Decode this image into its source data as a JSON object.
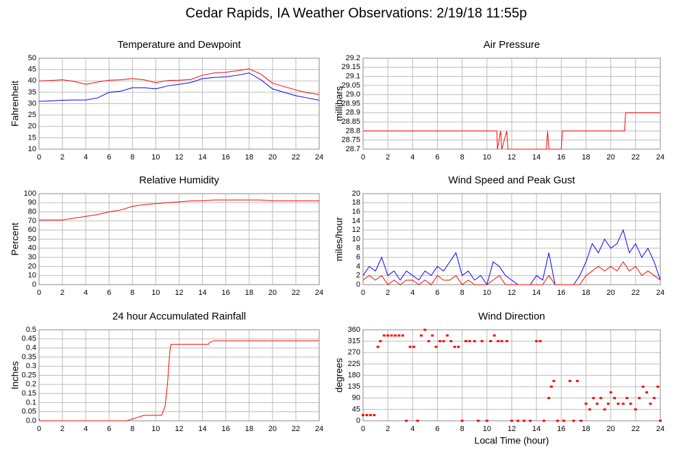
{
  "title": "Cedar Rapids, IA Weather Observations: 2/19/18 11:55p",
  "chart_data": [
    {
      "type": "line",
      "title": "Temperature and Dewpoint",
      "y_label": "Fahrenheit",
      "xlim": [
        0,
        24
      ],
      "xticks": [
        0,
        2,
        4,
        6,
        8,
        10,
        12,
        14,
        16,
        18,
        20,
        22,
        24
      ],
      "ylim": [
        10,
        50
      ],
      "yticks": [
        10,
        15,
        20,
        25,
        30,
        35,
        40,
        45,
        50
      ],
      "grid": true,
      "x": [
        0,
        1,
        2,
        3,
        4,
        5,
        6,
        7,
        8,
        9,
        10,
        11,
        12,
        13,
        14,
        15,
        16,
        17,
        18,
        19,
        20,
        21,
        22,
        23,
        24
      ],
      "series": [
        {
          "color": "#ff0000",
          "values": [
            40,
            40.2,
            40.5,
            39.8,
            38.5,
            39.5,
            40.3,
            40.5,
            41,
            40.5,
            39.2,
            40.2,
            40.3,
            40.6,
            42.5,
            43.5,
            43.8,
            44.5,
            45.3,
            43,
            39,
            37.5,
            36,
            34.8,
            34
          ]
        },
        {
          "color": "#0000ff",
          "values": [
            31,
            31.2,
            31.5,
            31.6,
            31.6,
            32.5,
            35,
            35.5,
            37,
            37,
            36.5,
            37.8,
            38.5,
            39.3,
            41,
            41.5,
            41.8,
            42.5,
            43.5,
            40.5,
            36.5,
            35,
            33.5,
            32.5,
            31.5
          ]
        }
      ]
    },
    {
      "type": "line",
      "title": "Air Pressure",
      "y_label": "millibars",
      "xlim": [
        0,
        24
      ],
      "xticks": [
        0,
        2,
        4,
        6,
        8,
        10,
        12,
        14,
        16,
        18,
        20,
        22,
        24
      ],
      "ylim": [
        28.7,
        29.2
      ],
      "yticks": [
        28.7,
        28.75,
        28.8,
        28.85,
        28.9,
        28.95,
        {
          "value": 29,
          "label": "29.0"
        },
        29.05,
        29.1,
        29.15,
        29.2
      ],
      "grid": true,
      "x": [
        0,
        10.8,
        10.85,
        11.1,
        11.2,
        11.6,
        11.7,
        14.8,
        14.9,
        15.0,
        15.1,
        16.0,
        16.1,
        21.1,
        21.2,
        24
      ],
      "series": [
        {
          "color": "#ff0000",
          "values": [
            28.8,
            28.8,
            28.7,
            28.8,
            28.7,
            28.8,
            28.7,
            28.7,
            28.8,
            28.7,
            28.7,
            28.7,
            28.8,
            28.8,
            28.9,
            28.9
          ]
        }
      ]
    },
    {
      "type": "line",
      "title": "Relative Humidity",
      "y_label": "Percent",
      "xlim": [
        0,
        24
      ],
      "xticks": [
        0,
        2,
        4,
        6,
        8,
        10,
        12,
        14,
        16,
        18,
        20,
        22,
        24
      ],
      "ylim": [
        0,
        100
      ],
      "yticks": [
        0,
        10,
        20,
        30,
        40,
        50,
        60,
        70,
        80,
        90,
        100
      ],
      "grid": true,
      "x": [
        0,
        1,
        2,
        3,
        4,
        5,
        6,
        7,
        8,
        9,
        10,
        11,
        12,
        13,
        14,
        15,
        16,
        17,
        18,
        19,
        20,
        21,
        22,
        23,
        24
      ],
      "series": [
        {
          "color": "#ff0000",
          "values": [
            71,
            71,
            71,
            73,
            75,
            77,
            80,
            82,
            86,
            88,
            89,
            90,
            91,
            92,
            92,
            93,
            93,
            93,
            93,
            93,
            92,
            92,
            92,
            92,
            92
          ]
        }
      ]
    },
    {
      "type": "line",
      "title": "Wind Speed and Peak Gust",
      "y_label": "miles/hour",
      "xlim": [
        0,
        24
      ],
      "xticks": [
        0,
        2,
        4,
        6,
        8,
        10,
        12,
        14,
        16,
        18,
        20,
        22,
        24
      ],
      "ylim": [
        0,
        20
      ],
      "yticks": [
        0,
        2,
        4,
        6,
        8,
        10,
        12,
        14,
        16,
        18,
        20
      ],
      "grid": true,
      "x": [
        0,
        0.5,
        1,
        1.5,
        2,
        2.5,
        3,
        3.5,
        4,
        4.5,
        5,
        5.5,
        6,
        6.5,
        7,
        7.5,
        8,
        8.5,
        9,
        9.5,
        10,
        10.5,
        11,
        11.5,
        12,
        12.5,
        13,
        13.5,
        14,
        14.5,
        15,
        15.5,
        16,
        16.5,
        17,
        17.5,
        18,
        18.5,
        19,
        19.5,
        20,
        20.5,
        21,
        21.5,
        22,
        22.5,
        23,
        23.5,
        24
      ],
      "series": [
        {
          "color": "#0000ff",
          "values": [
            2,
            4,
            3,
            6,
            2,
            3,
            1,
            3,
            2,
            1,
            3,
            2,
            4,
            3,
            5,
            7,
            2,
            3,
            1,
            2,
            0,
            5,
            4,
            2,
            1,
            0,
            0,
            0,
            2,
            1,
            7,
            0,
            0,
            0,
            0,
            2,
            5,
            9,
            7,
            10,
            8,
            9,
            12,
            7,
            9,
            6,
            8,
            5,
            1
          ]
        },
        {
          "color": "#ff0000",
          "values": [
            1,
            2,
            1,
            2,
            0,
            1,
            0,
            1,
            1,
            0,
            1,
            0,
            2,
            1,
            1,
            2,
            0,
            1,
            0,
            0,
            0,
            1,
            2,
            0,
            0,
            0,
            0,
            0,
            0,
            0,
            2,
            0,
            0,
            0,
            0,
            0,
            2,
            3,
            4,
            3,
            4,
            3,
            5,
            3,
            4,
            2,
            3,
            2,
            1
          ]
        }
      ]
    },
    {
      "type": "line",
      "title": "24 hour Accumulated Rainfall",
      "y_label": "Inches",
      "xlim": [
        0,
        24
      ],
      "xticks": [
        0,
        2,
        4,
        6,
        8,
        10,
        12,
        14,
        16,
        18,
        20,
        22,
        24
      ],
      "ylim": [
        0,
        0.5
      ],
      "yticks": [
        {
          "value": 0,
          "label": "0.0"
        },
        0.05,
        0.1,
        0.15,
        0.2,
        0.25,
        0.3,
        0.35,
        0.4,
        0.45,
        0.5
      ],
      "grid": true,
      "x": [
        0,
        0.1,
        7.5,
        8,
        8.5,
        9,
        10,
        10.5,
        10.8,
        11,
        11.2,
        11.3,
        14.5,
        14.6,
        15,
        24
      ],
      "series": [
        {
          "color": "#ff0000",
          "values": [
            0.01,
            0,
            0,
            0.01,
            0.02,
            0.03,
            0.03,
            0.03,
            0.08,
            0.2,
            0.38,
            0.42,
            0.42,
            0.43,
            0.44,
            0.44
          ]
        }
      ]
    },
    {
      "type": "scatter",
      "title": "Wind Direction",
      "y_label": "degrees",
      "x_label": "Local Time (hour)",
      "xlim": [
        0,
        24
      ],
      "xticks": [
        0,
        2,
        4,
        6,
        8,
        10,
        12,
        14,
        16,
        18,
        20,
        22,
        24
      ],
      "ylim": [
        0,
        360
      ],
      "yticks": [
        0,
        45,
        90,
        135,
        180,
        225,
        270,
        315,
        360
      ],
      "grid": true,
      "x": [
        0,
        0.3,
        0.6,
        0.9,
        1.2,
        1.4,
        1.7,
        2.0,
        2.3,
        2.6,
        2.9,
        3.2,
        3.5,
        3.8,
        4.1,
        4.4,
        4.7,
        5.0,
        5.3,
        5.6,
        5.9,
        6.2,
        6.5,
        6.8,
        7.1,
        7.4,
        7.7,
        8.0,
        8.3,
        8.6,
        9.0,
        9.3,
        9.6,
        10.0,
        10.3,
        10.6,
        10.9,
        11.2,
        11.6,
        12.0,
        12.5,
        13.0,
        13.5,
        14.0,
        14.3,
        14.6,
        15.0,
        15.2,
        15.4,
        15.7,
        16.2,
        16.7,
        17.0,
        17.3,
        17.6,
        18.0,
        18.3,
        18.6,
        18.9,
        19.2,
        19.5,
        19.8,
        20.0,
        20.3,
        20.6,
        21.0,
        21.3,
        21.6,
        22.0,
        22.3,
        22.6,
        22.9,
        23.2,
        23.5,
        23.8,
        24.0
      ],
      "series": [
        {
          "color": "#ff0000",
          "values": [
            22.5,
            22.5,
            22.5,
            22.5,
            292.5,
            315,
            337.5,
            337.5,
            337.5,
            337.5,
            337.5,
            337.5,
            0,
            292.5,
            292.5,
            0,
            337.5,
            360,
            315,
            337.5,
            292.5,
            315,
            315,
            337.5,
            315,
            292.5,
            292.5,
            0,
            315,
            315,
            315,
            0,
            315,
            0,
            315,
            337.5,
            315,
            315,
            315,
            0,
            0,
            0,
            0,
            315,
            315,
            0,
            90,
            135,
            157.5,
            0,
            0,
            157.5,
            0,
            157.5,
            0,
            67.5,
            45,
            90,
            67.5,
            90,
            45,
            67.5,
            112.5,
            90,
            67.5,
            67.5,
            90,
            67.5,
            45,
            90,
            135,
            112.5,
            67.5,
            90,
            135,
            0
          ]
        }
      ]
    }
  ]
}
